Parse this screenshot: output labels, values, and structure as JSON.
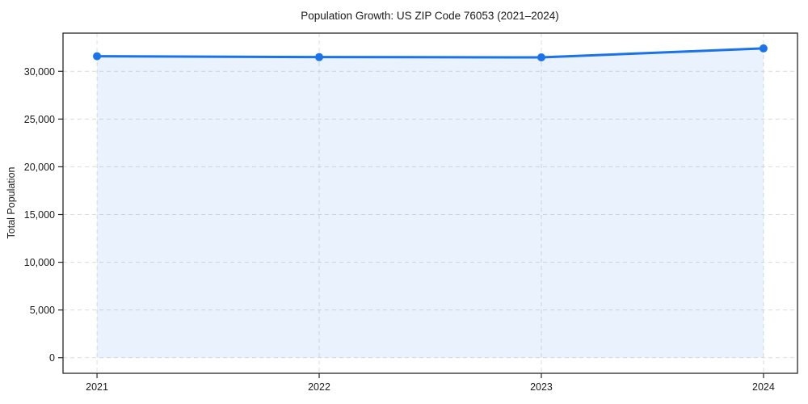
{
  "chart_data": {
    "type": "line",
    "title": "Population Growth: US ZIP Code 76053 (2021–2024)",
    "xlabel": "",
    "ylabel": "Total Population",
    "x": [
      2021,
      2022,
      2023,
      2024
    ],
    "series": [
      {
        "name": "Total Population",
        "values": [
          31580,
          31490,
          31460,
          32400
        ]
      }
    ],
    "xticks": [
      2021,
      2022,
      2023,
      2024
    ],
    "xtick_labels": [
      "2021",
      "2022",
      "2023",
      "2024"
    ],
    "yticks": [
      0,
      5000,
      10000,
      15000,
      20000,
      25000,
      30000
    ],
    "ytick_labels": [
      "0",
      "5,000",
      "10,000",
      "15,000",
      "20,000",
      "25,000",
      "30,000"
    ],
    "xlim": [
      2020.847,
      2024.153
    ],
    "ylim": [
      -1630,
      34000
    ],
    "grid": true,
    "grid_style": "dashed",
    "legend_position": "none",
    "line_color": "#1a73e8",
    "marker": "circle",
    "marker_radius": 5,
    "line_width": 3,
    "area_fill": true,
    "area_baseline": 0,
    "area_opacity": 0.09,
    "background_color": "#ffffff",
    "spine_color": "#262626",
    "grid_color": "#dcdcdc"
  }
}
